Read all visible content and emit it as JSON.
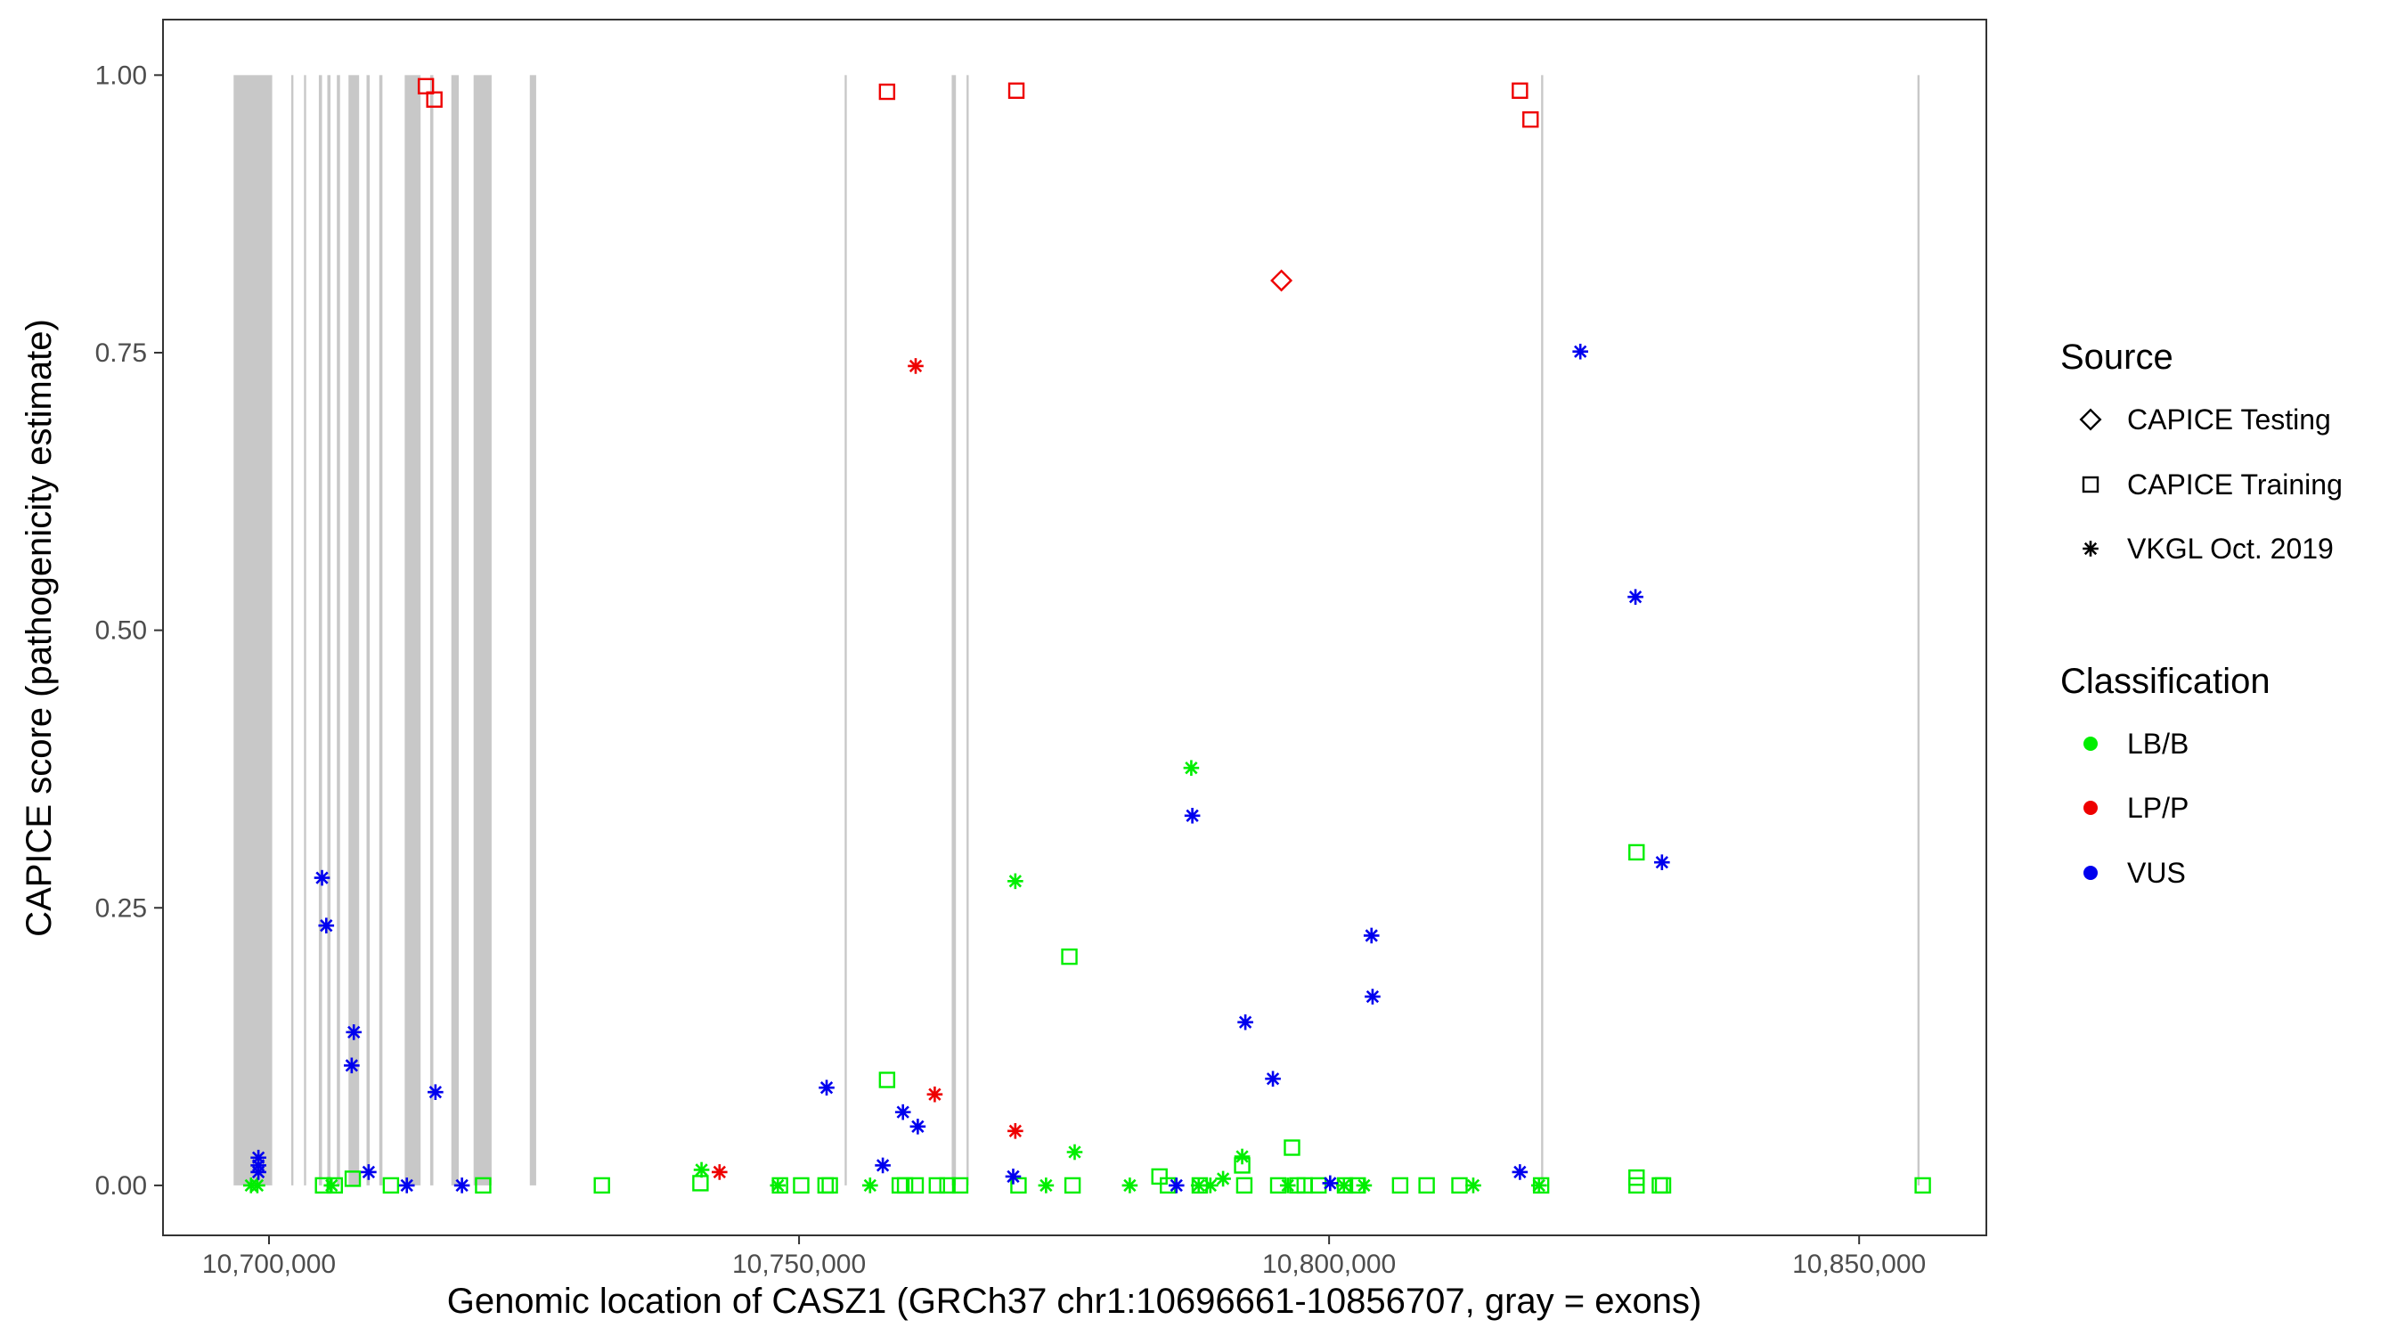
{
  "chart_data": {
    "type": "scatter",
    "xlabel": "Genomic location of CASZ1 (GRCh37 chr1:10696661-10856707, gray = exons)",
    "ylabel": "CAPICE score (pathogenicity estimate)",
    "xlim": [
      10690000,
      10862000
    ],
    "ylim": [
      -0.045,
      1.05
    ],
    "x_ticks": [
      10700000,
      10750000,
      10800000,
      10850000
    ],
    "x_tick_labels": [
      "10,700,000",
      "10,750,000",
      "10,800,000",
      "10,850,000"
    ],
    "y_ticks": [
      0,
      0.25,
      0.5,
      0.75,
      1
    ],
    "y_tick_labels": [
      "0.00",
      "0.25",
      "0.50",
      "0.75",
      "1.00"
    ],
    "grid": false,
    "legend_placement": "right",
    "exon_color": "#c8c8c8",
    "exons": [
      [
        10696661,
        10700300
      ],
      [
        10702100,
        10702300
      ],
      [
        10703300,
        10703500
      ],
      [
        10704700,
        10705000
      ],
      [
        10705500,
        10705800
      ],
      [
        10706400,
        10706700
      ],
      [
        10707500,
        10708500
      ],
      [
        10709200,
        10709500
      ],
      [
        10710400,
        10710700
      ],
      [
        10712800,
        10714300
      ],
      [
        10715200,
        10715500
      ],
      [
        10717200,
        10717900
      ],
      [
        10719300,
        10721000
      ],
      [
        10724600,
        10725200
      ],
      [
        10754300,
        10754500
      ],
      [
        10764400,
        10764800
      ],
      [
        10765800,
        10766000
      ],
      [
        10820000,
        10820200
      ],
      [
        10855500,
        10855700
      ]
    ],
    "legend": {
      "source_title": "Source",
      "source_items": [
        {
          "label": "CAPICE Testing",
          "shape": "diamond"
        },
        {
          "label": "CAPICE Training",
          "shape": "square"
        },
        {
          "label": "VKGL Oct. 2019",
          "shape": "asterisk"
        }
      ],
      "class_title": "Classification",
      "class_items": [
        {
          "label": "LB/B",
          "color": "#00ee00"
        },
        {
          "label": "LP/P",
          "color": "#ee0000"
        },
        {
          "label": "VUS",
          "color": "#0000ee"
        }
      ]
    },
    "series": [
      {
        "source": "CAPICE Testing",
        "classification": "LP/P",
        "points": [
          [
            10795500,
            0.815
          ]
        ]
      },
      {
        "source": "CAPICE Training",
        "classification": "LP/P",
        "points": [
          [
            10714800,
            0.99
          ],
          [
            10715600,
            0.978
          ],
          [
            10758300,
            0.985
          ],
          [
            10770500,
            0.986
          ],
          [
            10818000,
            0.986
          ],
          [
            10819000,
            0.96
          ]
        ]
      },
      {
        "source": "CAPICE Training",
        "classification": "LB/B",
        "points": [
          [
            10705100,
            0.0
          ],
          [
            10706200,
            0.0
          ],
          [
            10707900,
            0.006
          ],
          [
            10711500,
            0.0
          ],
          [
            10720200,
            0.0
          ],
          [
            10731400,
            0.0
          ],
          [
            10740700,
            0.002
          ],
          [
            10748200,
            0.0
          ],
          [
            10750200,
            0.0
          ],
          [
            10752500,
            0.0
          ],
          [
            10752900,
            0.0
          ],
          [
            10758300,
            0.095
          ],
          [
            10759500,
            0.0
          ],
          [
            10760000,
            0.0
          ],
          [
            10761000,
            0.0
          ],
          [
            10763000,
            0.0
          ],
          [
            10764000,
            0.0
          ],
          [
            10765200,
            0.0
          ],
          [
            10770700,
            0.0
          ],
          [
            10775500,
            0.206
          ],
          [
            10775800,
            0.0
          ],
          [
            10784000,
            0.008
          ],
          [
            10784800,
            0.0
          ],
          [
            10787800,
            0.0
          ],
          [
            10791800,
            0.018
          ],
          [
            10792000,
            0.0
          ],
          [
            10795200,
            0.0
          ],
          [
            10796500,
            0.034
          ],
          [
            10797000,
            0.0
          ],
          [
            10797700,
            0.0
          ],
          [
            10799000,
            0.0
          ],
          [
            10801500,
            0.0
          ],
          [
            10802700,
            0.0
          ],
          [
            10806700,
            0.0
          ],
          [
            10809200,
            0.0
          ],
          [
            10812300,
            0.0
          ],
          [
            10820000,
            0.0
          ],
          [
            10829000,
            0.3
          ],
          [
            10829000,
            0.007
          ],
          [
            10829000,
            0.0
          ],
          [
            10831200,
            0.0
          ],
          [
            10831500,
            0.0
          ],
          [
            10856000,
            0.0
          ]
        ]
      },
      {
        "source": "VKGL Oct. 2019",
        "classification": "LB/B",
        "points": [
          [
            10698300,
            0.0
          ],
          [
            10698900,
            0.0
          ],
          [
            10705900,
            0.0
          ],
          [
            10740800,
            0.014
          ],
          [
            10748000,
            0.0
          ],
          [
            10756700,
            0.0
          ],
          [
            10770400,
            0.274
          ],
          [
            10773300,
            0.0
          ],
          [
            10776000,
            0.03
          ],
          [
            10781200,
            0.0
          ],
          [
            10787000,
            0.376
          ],
          [
            10787700,
            0.0
          ],
          [
            10788800,
            0.0
          ],
          [
            10790000,
            0.006
          ],
          [
            10791800,
            0.026
          ],
          [
            10796100,
            0.0
          ],
          [
            10801400,
            0.0
          ],
          [
            10803300,
            0.0
          ],
          [
            10813600,
            0.0
          ],
          [
            10819800,
            0.0
          ]
        ]
      },
      {
        "source": "VKGL Oct. 2019",
        "classification": "LP/P",
        "points": [
          [
            10742500,
            0.012
          ],
          [
            10761000,
            0.738
          ],
          [
            10762800,
            0.082
          ],
          [
            10770400,
            0.049
          ]
        ]
      },
      {
        "source": "VKGL Oct. 2019",
        "classification": "VUS",
        "points": [
          [
            10699000,
            0.025
          ],
          [
            10699000,
            0.018
          ],
          [
            10699000,
            0.012
          ],
          [
            10705000,
            0.277
          ],
          [
            10705400,
            0.234
          ],
          [
            10707800,
            0.108
          ],
          [
            10708000,
            0.138
          ],
          [
            10709400,
            0.012
          ],
          [
            10713000,
            0.0
          ],
          [
            10715700,
            0.084
          ],
          [
            10718200,
            0.0
          ],
          [
            10752600,
            0.088
          ],
          [
            10757900,
            0.018
          ],
          [
            10759800,
            0.066
          ],
          [
            10761200,
            0.053
          ],
          [
            10770200,
            0.008
          ],
          [
            10785600,
            0.0
          ],
          [
            10787100,
            0.333
          ],
          [
            10792100,
            0.147
          ],
          [
            10794700,
            0.096
          ],
          [
            10800100,
            0.002
          ],
          [
            10804000,
            0.225
          ],
          [
            10804100,
            0.17
          ],
          [
            10818000,
            0.012
          ],
          [
            10823700,
            0.751
          ],
          [
            10828900,
            0.53
          ],
          [
            10831400,
            0.291
          ]
        ]
      }
    ]
  }
}
